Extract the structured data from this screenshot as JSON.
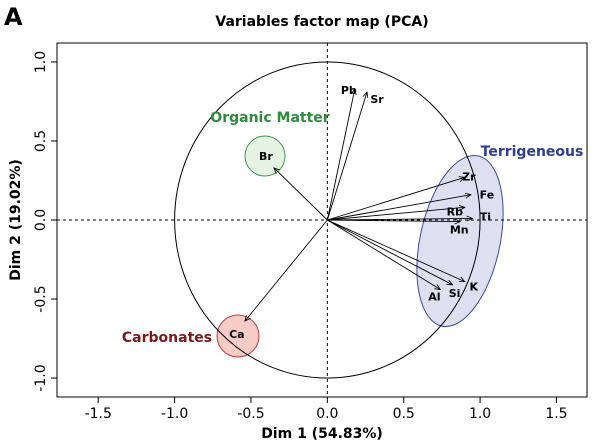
{
  "panel": "A",
  "chart_data": {
    "type": "vector",
    "title": "Variables factor map (PCA)",
    "x_label": "Dim 1 (54.83%)",
    "y_label": "Dim 2 (19.02%)",
    "xlim": [
      -1.77,
      1.7
    ],
    "ylim": [
      -1.12,
      1.12
    ],
    "xticks": [
      -1.5,
      {
        "value": -1,
        "label": "-1.0"
      },
      -0.5,
      {
        "value": 0,
        "label": "0.0"
      },
      0.5,
      {
        "value": 1,
        "label": "1.0"
      },
      1.5
    ],
    "yticks": [
      {
        "value": -1,
        "label": "-1.0"
      },
      -0.5,
      {
        "value": 0,
        "label": "0.0"
      },
      0.5,
      {
        "value": 1,
        "label": "1.0"
      }
    ],
    "color": "#000000",
    "variables": [
      {
        "name": "Pb",
        "x": 0.18,
        "y": 0.83
      },
      {
        "name": "Sr",
        "x": 0.26,
        "y": 0.81
      },
      {
        "name": "Br",
        "x": -0.35,
        "y": 0.33
      },
      {
        "name": "Ca",
        "x": -0.54,
        "y": -0.64
      },
      {
        "name": "Zr",
        "x": 0.9,
        "y": 0.27
      },
      {
        "name": "Fe",
        "x": 0.94,
        "y": 0.16
      },
      {
        "name": "Rb",
        "x": 0.9,
        "y": 0.08
      },
      {
        "name": "Ti",
        "x": 0.95,
        "y": 0.01
      },
      {
        "name": "Mn",
        "x": 0.87,
        "y": -0.01
      },
      {
        "name": "K",
        "x": 0.9,
        "y": -0.39
      },
      {
        "name": "Si",
        "x": 0.82,
        "y": -0.41
      },
      {
        "name": "Al",
        "x": 0.74,
        "y": -0.44
      }
    ],
    "groups": [
      {
        "name": "Organic Matter",
        "color": "#2e8b3e"
      },
      {
        "name": "Carbonates",
        "color": "#7a1a1a"
      },
      {
        "name": "Terrigeneous",
        "color": "#2c3e91"
      }
    ]
  }
}
